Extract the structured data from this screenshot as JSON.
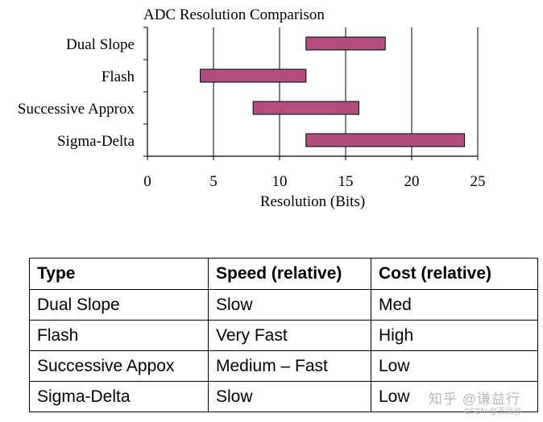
{
  "chart_data": {
    "type": "bar",
    "orientation": "horizontal-range",
    "title": "ADC Resolution Comparison",
    "xlabel": "Resolution (Bits)",
    "ylabel": "",
    "xlim": [
      0,
      25
    ],
    "xticks": [
      0,
      5,
      10,
      15,
      20,
      25
    ],
    "grid": "vertical",
    "categories": [
      "Dual Slope",
      "Flash",
      "Successive Approx",
      "Sigma-Delta"
    ],
    "ranges": [
      [
        12,
        18
      ],
      [
        4,
        12
      ],
      [
        8,
        16
      ],
      [
        12,
        24
      ]
    ],
    "bar_color": "#b24d7e"
  },
  "table": {
    "headers": [
      "Type",
      "Speed (relative)",
      "Cost (relative)"
    ],
    "rows": [
      [
        "Dual Slope",
        "Slow",
        "Med"
      ],
      [
        "Flash",
        "Very Fast",
        "High"
      ],
      [
        "Successive Appox",
        "Medium – Fast",
        "Low"
      ],
      [
        "Sigma-Delta",
        "Slow",
        "Low"
      ]
    ]
  },
  "watermark": {
    "main": "知乎 @谦益行",
    "sub": "CSDN @王比@"
  }
}
